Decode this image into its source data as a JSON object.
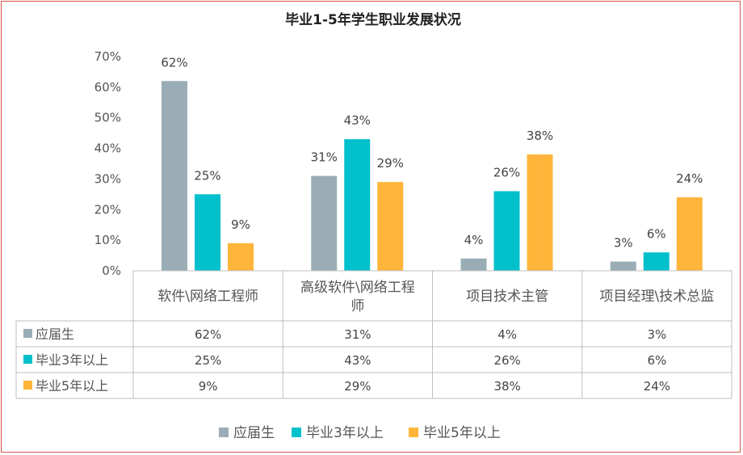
{
  "chart_data": {
    "type": "bar",
    "title": "毕业1-5年学生职业发展状况",
    "categories": [
      "软件\\网络工程师",
      "高级软件\\网络工程师",
      "项目技术主管",
      "项目经理\\技术总监"
    ],
    "category_lines": [
      [
        "软件\\网络工程师"
      ],
      [
        "高级软件\\网络工程",
        "师"
      ],
      [
        "项目技术主管"
      ],
      [
        "项目经理\\技术总监"
      ]
    ],
    "ylim": [
      0,
      70
    ],
    "yticks": [
      0,
      10,
      20,
      30,
      40,
      50,
      60,
      70
    ],
    "ytick_labels": [
      "0%",
      "10%",
      "20%",
      "30%",
      "40%",
      "50%",
      "60%",
      "70%"
    ],
    "value_suffix": "%",
    "grid": false,
    "legend_position": "bottom",
    "data_table": true,
    "series": [
      {
        "name": "应届生",
        "color": "#9aadb6",
        "values": [
          62,
          31,
          4,
          3
        ]
      },
      {
        "name": "毕业3年以上",
        "color": "#00c0cc",
        "values": [
          25,
          43,
          26,
          6
        ]
      },
      {
        "name": "毕业5年以上",
        "color": "#ffb43a",
        "values": [
          9,
          29,
          38,
          24
        ]
      }
    ]
  }
}
